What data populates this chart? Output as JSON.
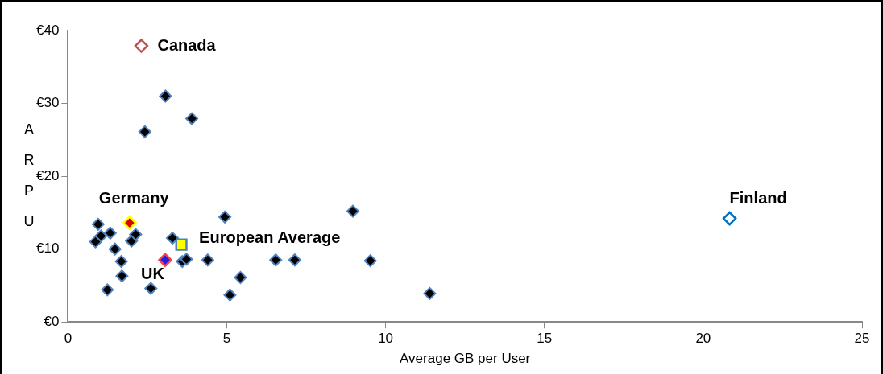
{
  "chart_data": {
    "type": "scatter",
    "xlabel": "Average GB per User",
    "ylabel": "ARPU",
    "xlim": [
      0,
      25
    ],
    "xticks": [
      0,
      5,
      10,
      15,
      20,
      25
    ],
    "ylim": [
      0,
      40
    ],
    "yticks": [
      {
        "value": 0,
        "label": "€0"
      },
      {
        "value": 10,
        "label": "€10"
      },
      {
        "value": 20,
        "label": "€20"
      },
      {
        "value": 30,
        "label": "€30"
      },
      {
        "value": 40,
        "label": "€40"
      }
    ],
    "grid": false,
    "legend": false,
    "marker": "diamond",
    "series": [
      {
        "color": "#000000",
        "x": [
          3.07,
          3.9,
          2.42,
          0.95,
          1.04,
          0.87,
          1.33,
          1.48,
          1.68,
          1.7,
          1.24,
          2.0,
          2.13,
          2.61,
          3.29,
          3.6,
          3.73,
          4.4,
          4.94,
          5.43,
          5.1,
          6.54,
          7.14,
          8.97,
          9.52,
          11.39
        ],
        "values": [
          31,
          27.9,
          26.1,
          13.4,
          11.8,
          11,
          12.2,
          10,
          8.3,
          6.3,
          4.4,
          11.1,
          12,
          4.6,
          11.5,
          8.3,
          8.6,
          8.5,
          14.4,
          6.1,
          3.7,
          8.5,
          8.5,
          15.2,
          8.4,
          3.9
        ]
      },
      {
        "name": "Canada",
        "color": "#c0504d",
        "x": [
          2.31
        ],
        "values": [
          37.9
        ]
      },
      {
        "name": "Finland",
        "color": "#0070c0",
        "x": [
          20.83
        ],
        "values": [
          14.2
        ]
      },
      {
        "name": "Germany",
        "color": "#e00000",
        "x": [
          1.94
        ],
        "values": [
          13.6
        ]
      },
      {
        "name": "UK",
        "color": "#2020e0",
        "x": [
          3.06
        ],
        "values": [
          8.5
        ]
      },
      {
        "name": "European Average",
        "color": "#ffff00",
        "x": [
          3.57
        ],
        "values": [
          10.6
        ],
        "marker": "square"
      }
    ]
  }
}
